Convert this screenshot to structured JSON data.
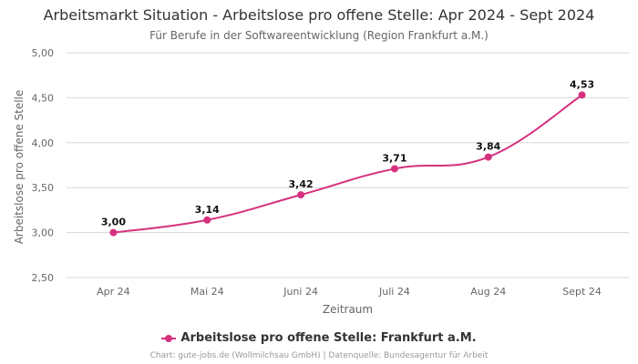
{
  "colors": {
    "series": "#d6307f",
    "grid": "#d8d8d8",
    "axis_text": "#666666"
  },
  "legend": {
    "label": "Arbeitslose pro offene Stelle: Frankfurt a.M."
  },
  "footer": {
    "text": "Chart: gute-jobs.de (Wollmilchsau GmbH) | Datenquelle: Bundesagentur für Arbeit"
  },
  "chart_data": {
    "type": "line",
    "title": "Arbeitsmarkt Situation - Arbeitslose pro offene Stelle: Apr 2024 - Sept 2024",
    "subtitle": "Für Berufe in der Softwareentwicklung (Region Frankfurt a.M.)",
    "xlabel": "Zeitraum",
    "ylabel": "Arbeitslose pro offene Stelle",
    "categories": [
      "Apr 24",
      "Mai 24",
      "Juni 24",
      "Juli 24",
      "Aug 24",
      "Sept 24"
    ],
    "series": [
      {
        "name": "Arbeitslose pro offene Stelle: Frankfurt a.M.",
        "values": [
          3.0,
          3.14,
          3.42,
          3.71,
          3.84,
          4.53
        ],
        "labels": [
          "3,00",
          "3,14",
          "3,42",
          "3,71",
          "3,84",
          "4,53"
        ]
      }
    ],
    "ylim": [
      2.5,
      5.0
    ],
    "yticks": [
      2.5,
      3.0,
      3.5,
      4.0,
      4.5,
      5.0
    ],
    "ytick_labels": [
      "2,50",
      "3,00",
      "3,50",
      "4,00",
      "4,50",
      "5,00"
    ],
    "grid": true,
    "legend_position": "bottom"
  }
}
